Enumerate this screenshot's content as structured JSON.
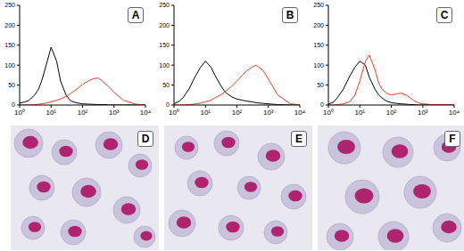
{
  "chart_data": [
    {
      "type": "line",
      "title": "A",
      "log": "x",
      "x": [
        1,
        1.5,
        2,
        3,
        4,
        5,
        7,
        10,
        15,
        20,
        30,
        40,
        50,
        70,
        100,
        150,
        200,
        300,
        400,
        500,
        700,
        1000,
        2000,
        5000,
        10000
      ],
      "series": [
        {
          "color": "#000000",
          "values": [
            5,
            8,
            12,
            25,
            40,
            60,
            100,
            145,
            110,
            60,
            25,
            12,
            8,
            5,
            3,
            2,
            2,
            1,
            1,
            1,
            0,
            0,
            0,
            0,
            0
          ]
        },
        {
          "color": "#f03a1e",
          "values": [
            0,
            0,
            0,
            1,
            2,
            3,
            5,
            8,
            12,
            15,
            22,
            28,
            33,
            42,
            52,
            60,
            65,
            68,
            62,
            55,
            45,
            32,
            12,
            2,
            0
          ]
        }
      ],
      "xlim": [
        1,
        10000
      ],
      "xticks": [
        {
          "value": 1,
          "label": "10⁰"
        },
        {
          "value": 10,
          "label": "10¹"
        },
        {
          "value": 100,
          "label": "10²"
        },
        {
          "value": 1000,
          "label": "10³"
        },
        {
          "value": 10000,
          "label": "10⁴"
        }
      ],
      "ylim": [
        0,
        250
      ],
      "yticks": [
        0,
        50,
        100,
        150,
        200,
        250
      ]
    },
    {
      "type": "line",
      "title": "B",
      "log": "x",
      "x": [
        1,
        1.5,
        2,
        3,
        4,
        5,
        7,
        10,
        15,
        20,
        30,
        40,
        50,
        70,
        100,
        150,
        200,
        300,
        400,
        500,
        700,
        1000,
        2000,
        5000,
        10000
      ],
      "series": [
        {
          "color": "#000000",
          "values": [
            3,
            10,
            20,
            40,
            60,
            75,
            95,
            110,
            95,
            75,
            50,
            35,
            28,
            20,
            15,
            12,
            10,
            8,
            6,
            5,
            4,
            3,
            1,
            0,
            0
          ]
        },
        {
          "color": "#f03a1e",
          "values": [
            0,
            0,
            0,
            1,
            2,
            3,
            5,
            8,
            12,
            18,
            25,
            32,
            38,
            48,
            60,
            75,
            85,
            95,
            100,
            95,
            85,
            65,
            25,
            3,
            0
          ]
        }
      ],
      "xlim": [
        1,
        10000
      ],
      "xticks": [
        {
          "value": 1,
          "label": "10⁰"
        },
        {
          "value": 10,
          "label": "10¹"
        },
        {
          "value": 100,
          "label": "10²"
        },
        {
          "value": 1000,
          "label": "10³"
        },
        {
          "value": 10000,
          "label": "10⁴"
        }
      ],
      "ylim": [
        0,
        250
      ],
      "yticks": [
        0,
        50,
        100,
        150,
        200,
        250
      ]
    },
    {
      "type": "line",
      "title": "C",
      "log": "x",
      "x": [
        1,
        1.5,
        2,
        3,
        4,
        5,
        7,
        10,
        15,
        20,
        30,
        40,
        50,
        70,
        100,
        150,
        200,
        300,
        400,
        500,
        700,
        1000,
        2000,
        5000,
        10000
      ],
      "series": [
        {
          "color": "#000000",
          "values": [
            2,
            8,
            20,
            40,
            60,
            75,
            95,
            110,
            100,
            70,
            40,
            25,
            18,
            10,
            6,
            4,
            3,
            2,
            1,
            1,
            0,
            0,
            0,
            0,
            0
          ]
        },
        {
          "color": "#f03a1e",
          "values": [
            0,
            0,
            1,
            3,
            6,
            10,
            25,
            60,
            110,
            125,
            90,
            55,
            40,
            30,
            25,
            28,
            30,
            25,
            18,
            12,
            6,
            3,
            1,
            0,
            0
          ]
        }
      ],
      "xlim": [
        1,
        10000
      ],
      "xticks": [
        {
          "value": 1,
          "label": "10⁰"
        },
        {
          "value": 10,
          "label": "10¹"
        },
        {
          "value": 100,
          "label": "10²"
        },
        {
          "value": 1000,
          "label": "10³"
        },
        {
          "value": 10000,
          "label": "10⁴"
        }
      ],
      "ylim": [
        0,
        250
      ],
      "yticks": [
        0,
        50,
        100,
        150,
        200,
        250
      ]
    }
  ],
  "images": [
    {
      "label": "D"
    },
    {
      "label": "E"
    },
    {
      "label": "F"
    }
  ]
}
